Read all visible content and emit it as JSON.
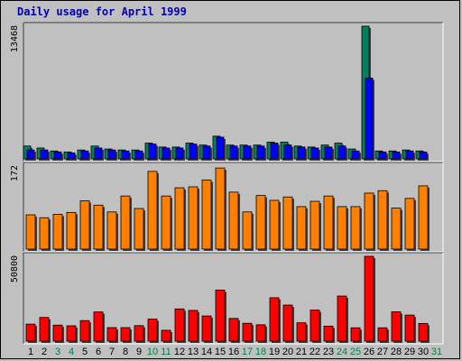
{
  "chart_data": [
    {
      "type": "bar",
      "title": "Daily usage for April 1999",
      "ymax_label": "13468",
      "ylim": [
        0,
        13468
      ],
      "categories": [
        "1",
        "2",
        "3",
        "4",
        "5",
        "6",
        "7",
        "8",
        "9",
        "10",
        "11",
        "12",
        "13",
        "14",
        "15",
        "16",
        "17",
        "18",
        "19",
        "20",
        "21",
        "22",
        "23",
        "24",
        "25",
        "26",
        "27",
        "28",
        "29",
        "30",
        "31"
      ],
      "category_colors": [
        "#000000",
        "#000000",
        "#008040",
        "#008040",
        "#000000",
        "#000000",
        "#000000",
        "#000000",
        "#000000",
        "#008040",
        "#008040",
        "#000000",
        "#000000",
        "#000000",
        "#000000",
        "#000000",
        "#008040",
        "#008040",
        "#000000",
        "#000000",
        "#000000",
        "#000000",
        "#000000",
        "#008040",
        "#008040",
        "#000000",
        "#000000",
        "#000000",
        "#000000",
        "#000000",
        "#008040"
      ],
      "series": [
        {
          "color": "#008060",
          "values": [
            1300,
            1100,
            800,
            700,
            900,
            1300,
            1000,
            900,
            900,
            1600,
            1200,
            1200,
            1600,
            1400,
            2300,
            1400,
            1400,
            1400,
            1700,
            1700,
            1300,
            1200,
            1400,
            1600,
            1000,
            13468,
            800,
            800,
            900,
            800,
            null
          ]
        },
        {
          "color": "#0000ff",
          "values": [
            900,
            900,
            700,
            600,
            800,
            1100,
            900,
            800,
            800,
            1500,
            1100,
            1100,
            1500,
            1300,
            2200,
            1300,
            1300,
            1300,
            1600,
            1400,
            1200,
            1100,
            1200,
            1300,
            800,
            8200,
            700,
            700,
            800,
            700,
            null
          ]
        }
      ]
    },
    {
      "type": "bar",
      "ymax_label": "172",
      "ylim": [
        0,
        172
      ],
      "series": [
        {
          "color": "#ff8000",
          "values": [
            71,
            65,
            72,
            76,
            100,
            91,
            77,
            110,
            84,
            161,
            110,
            127,
            129,
            143,
            168,
            118,
            77,
            111,
            101,
            108,
            88,
            99,
            110,
            88,
            88,
            116,
            121,
            85,
            105,
            131,
            null
          ]
        }
      ]
    },
    {
      "type": "bar",
      "ymax_label": "50800",
      "ylim": [
        0,
        50800
      ],
      "series": [
        {
          "color": "#ff0000",
          "values": [
            10200,
            14200,
            9600,
            9200,
            12300,
            17500,
            8100,
            8100,
            9300,
            13200,
            6500,
            19300,
            18400,
            15100,
            30600,
            13600,
            10700,
            9800,
            26000,
            21600,
            11000,
            18600,
            9000,
            27000,
            8000,
            50800,
            8000,
            17600,
            15600,
            10600,
            null
          ]
        }
      ]
    }
  ]
}
